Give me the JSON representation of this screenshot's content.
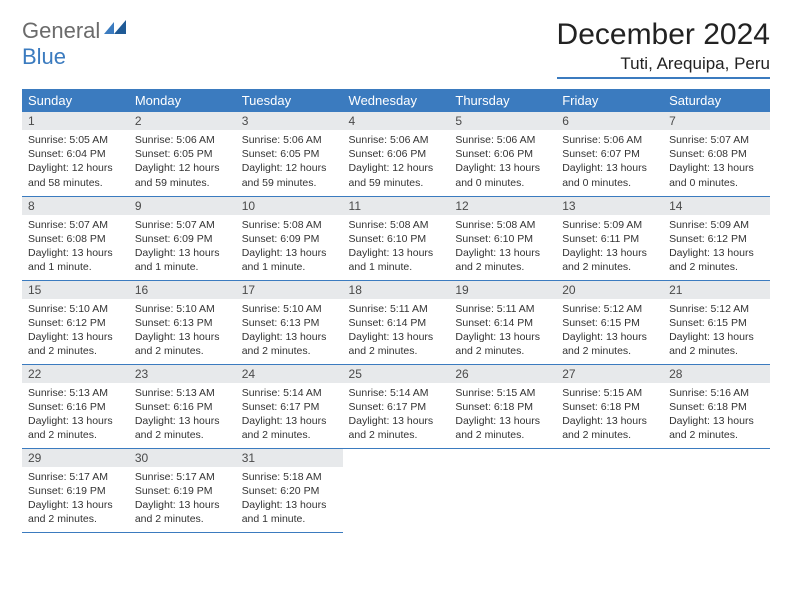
{
  "logo": {
    "text1": "General",
    "text2": "Blue"
  },
  "title": "December 2024",
  "location": "Tuti, Arequipa, Peru",
  "colors": {
    "header_bg": "#3b7bbf",
    "header_text": "#ffffff",
    "daynum_bg": "#e7e9eb",
    "text": "#333333",
    "logo_gray": "#6b6b6b",
    "logo_blue": "#3b7bbf",
    "border": "#3b7bbf"
  },
  "weekdays": [
    "Sunday",
    "Monday",
    "Tuesday",
    "Wednesday",
    "Thursday",
    "Friday",
    "Saturday"
  ],
  "weeks": [
    [
      {
        "n": "1",
        "sr": "5:05 AM",
        "ss": "6:04 PM",
        "dl": "12 hours and 58 minutes."
      },
      {
        "n": "2",
        "sr": "5:06 AM",
        "ss": "6:05 PM",
        "dl": "12 hours and 59 minutes."
      },
      {
        "n": "3",
        "sr": "5:06 AM",
        "ss": "6:05 PM",
        "dl": "12 hours and 59 minutes."
      },
      {
        "n": "4",
        "sr": "5:06 AM",
        "ss": "6:06 PM",
        "dl": "12 hours and 59 minutes."
      },
      {
        "n": "5",
        "sr": "5:06 AM",
        "ss": "6:06 PM",
        "dl": "13 hours and 0 minutes."
      },
      {
        "n": "6",
        "sr": "5:06 AM",
        "ss": "6:07 PM",
        "dl": "13 hours and 0 minutes."
      },
      {
        "n": "7",
        "sr": "5:07 AM",
        "ss": "6:08 PM",
        "dl": "13 hours and 0 minutes."
      }
    ],
    [
      {
        "n": "8",
        "sr": "5:07 AM",
        "ss": "6:08 PM",
        "dl": "13 hours and 1 minute."
      },
      {
        "n": "9",
        "sr": "5:07 AM",
        "ss": "6:09 PM",
        "dl": "13 hours and 1 minute."
      },
      {
        "n": "10",
        "sr": "5:08 AM",
        "ss": "6:09 PM",
        "dl": "13 hours and 1 minute."
      },
      {
        "n": "11",
        "sr": "5:08 AM",
        "ss": "6:10 PM",
        "dl": "13 hours and 1 minute."
      },
      {
        "n": "12",
        "sr": "5:08 AM",
        "ss": "6:10 PM",
        "dl": "13 hours and 2 minutes."
      },
      {
        "n": "13",
        "sr": "5:09 AM",
        "ss": "6:11 PM",
        "dl": "13 hours and 2 minutes."
      },
      {
        "n": "14",
        "sr": "5:09 AM",
        "ss": "6:12 PM",
        "dl": "13 hours and 2 minutes."
      }
    ],
    [
      {
        "n": "15",
        "sr": "5:10 AM",
        "ss": "6:12 PM",
        "dl": "13 hours and 2 minutes."
      },
      {
        "n": "16",
        "sr": "5:10 AM",
        "ss": "6:13 PM",
        "dl": "13 hours and 2 minutes."
      },
      {
        "n": "17",
        "sr": "5:10 AM",
        "ss": "6:13 PM",
        "dl": "13 hours and 2 minutes."
      },
      {
        "n": "18",
        "sr": "5:11 AM",
        "ss": "6:14 PM",
        "dl": "13 hours and 2 minutes."
      },
      {
        "n": "19",
        "sr": "5:11 AM",
        "ss": "6:14 PM",
        "dl": "13 hours and 2 minutes."
      },
      {
        "n": "20",
        "sr": "5:12 AM",
        "ss": "6:15 PM",
        "dl": "13 hours and 2 minutes."
      },
      {
        "n": "21",
        "sr": "5:12 AM",
        "ss": "6:15 PM",
        "dl": "13 hours and 2 minutes."
      }
    ],
    [
      {
        "n": "22",
        "sr": "5:13 AM",
        "ss": "6:16 PM",
        "dl": "13 hours and 2 minutes."
      },
      {
        "n": "23",
        "sr": "5:13 AM",
        "ss": "6:16 PM",
        "dl": "13 hours and 2 minutes."
      },
      {
        "n": "24",
        "sr": "5:14 AM",
        "ss": "6:17 PM",
        "dl": "13 hours and 2 minutes."
      },
      {
        "n": "25",
        "sr": "5:14 AM",
        "ss": "6:17 PM",
        "dl": "13 hours and 2 minutes."
      },
      {
        "n": "26",
        "sr": "5:15 AM",
        "ss": "6:18 PM",
        "dl": "13 hours and 2 minutes."
      },
      {
        "n": "27",
        "sr": "5:15 AM",
        "ss": "6:18 PM",
        "dl": "13 hours and 2 minutes."
      },
      {
        "n": "28",
        "sr": "5:16 AM",
        "ss": "6:18 PM",
        "dl": "13 hours and 2 minutes."
      }
    ],
    [
      {
        "n": "29",
        "sr": "5:17 AM",
        "ss": "6:19 PM",
        "dl": "13 hours and 2 minutes."
      },
      {
        "n": "30",
        "sr": "5:17 AM",
        "ss": "6:19 PM",
        "dl": "13 hours and 2 minutes."
      },
      {
        "n": "31",
        "sr": "5:18 AM",
        "ss": "6:20 PM",
        "dl": "13 hours and 1 minute."
      },
      null,
      null,
      null,
      null
    ]
  ],
  "labels": {
    "sunrise": "Sunrise:",
    "sunset": "Sunset:",
    "daylight": "Daylight:"
  }
}
